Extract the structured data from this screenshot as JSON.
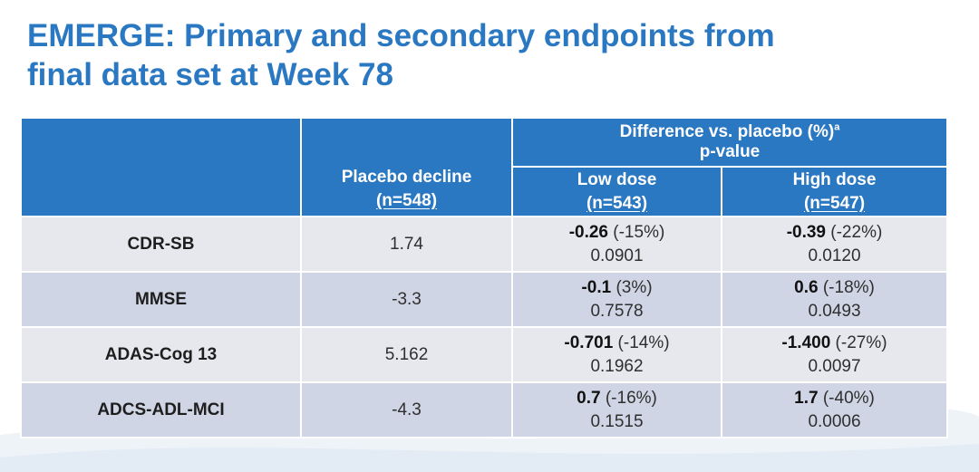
{
  "title_line1": "EMERGE: Primary and secondary endpoints from",
  "title_line2": "final data set at Week 78",
  "header": {
    "difference_label": "Difference vs. placebo (%)",
    "difference_sup": "a",
    "pvalue_label": "p-value",
    "placebo_label": "Placebo decline",
    "placebo_n": "(n=548)",
    "low_label": "Low dose",
    "low_n": "(n=543)",
    "high_label": "High dose",
    "high_n": "(n=547)"
  },
  "rows": [
    {
      "measure": "CDR-SB",
      "placebo": "1.74",
      "low": {
        "diff": "-0.26",
        "pct": " (-15%)",
        "p": "0.0901"
      },
      "high": {
        "diff": "-0.39",
        "pct": " (-22%)",
        "p": "0.0120"
      }
    },
    {
      "measure": "MMSE",
      "placebo": "-3.3",
      "low": {
        "diff": "-0.1",
        "pct": " (3%)",
        "p": "0.7578"
      },
      "high": {
        "diff": "0.6",
        "pct": " (-18%)",
        "p": "0.0493"
      }
    },
    {
      "measure": "ADAS-Cog 13",
      "placebo": "5.162",
      "low": {
        "diff": "-0.701",
        "pct": " (-14%)",
        "p": "0.1962"
      },
      "high": {
        "diff": "-1.400",
        "pct": " (-27%)",
        "p": "0.0097"
      }
    },
    {
      "measure": "ADCS-ADL-MCI",
      "placebo": "-4.3",
      "low": {
        "diff": "0.7",
        "pct": " (-16%)",
        "p": "0.1515"
      },
      "high": {
        "diff": "1.7",
        "pct": " (-40%)",
        "p": "0.0006"
      }
    }
  ]
}
